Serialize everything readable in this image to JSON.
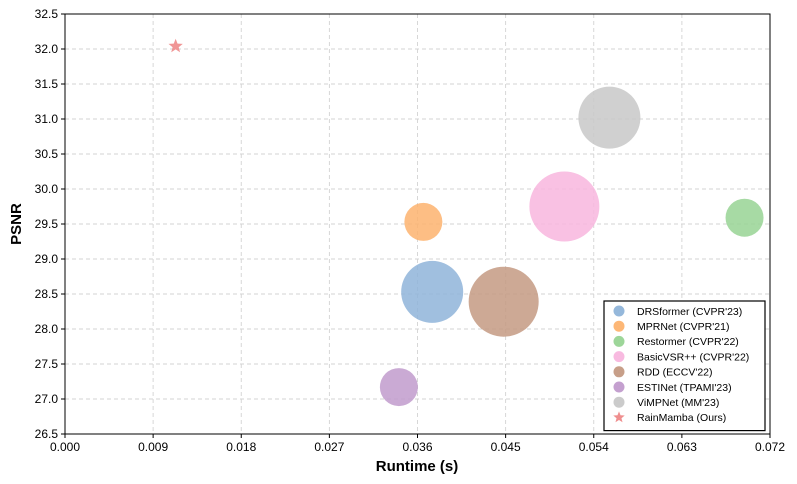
{
  "chart_data": {
    "type": "scatter",
    "xlabel": "Runtime (s)",
    "ylabel": "PSNR",
    "xlim": [
      0,
      0.072
    ],
    "ylim": [
      26.5,
      32.5
    ],
    "xticks": [
      "0.000",
      "0.009",
      "0.018",
      "0.027",
      "0.036",
      "0.045",
      "0.054",
      "0.063",
      "0.072"
    ],
    "yticks": [
      "26.5",
      "27.0",
      "27.5",
      "28.0",
      "28.5",
      "29.0",
      "29.5",
      "30.0",
      "30.5",
      "31.0",
      "31.5",
      "32.0",
      "32.5"
    ],
    "grid": true,
    "legend_position": "bottom-right",
    "series": [
      {
        "name": "DRSformer (CVPR'23)",
        "x": 0.0375,
        "y": 28.53,
        "color": "#8fb4d9",
        "marker": "circle",
        "size": "large"
      },
      {
        "name": "MPRNet (CVPR'21)",
        "x": 0.0366,
        "y": 29.53,
        "color": "#fdb36f",
        "marker": "circle",
        "size": "small"
      },
      {
        "name": "Restormer (CVPR'22)",
        "x": 0.0694,
        "y": 29.59,
        "color": "#98d494",
        "marker": "circle",
        "size": "small"
      },
      {
        "name": "BasicVSR++ (CVPR'22)",
        "x": 0.051,
        "y": 29.75,
        "color": "#f8b6de",
        "marker": "circle",
        "size": "xlarge"
      },
      {
        "name": "RDD (ECCV'22)",
        "x": 0.0448,
        "y": 28.39,
        "color": "#c49a83",
        "marker": "circle",
        "size": "xlarge"
      },
      {
        "name": "ESTINet (TPAMI'23)",
        "x": 0.0341,
        "y": 27.17,
        "color": "#c19bcc",
        "marker": "circle",
        "size": "small"
      },
      {
        "name": "ViMPNet (MM'23)",
        "x": 0.0556,
        "y": 31.02,
        "color": "#c8c8c8",
        "marker": "circle",
        "size": "large"
      },
      {
        "name": "RainMamba (Ours)",
        "x": 0.0113,
        "y": 32.04,
        "color": "#ef8f8f",
        "marker": "star",
        "size": "tiny"
      }
    ]
  }
}
